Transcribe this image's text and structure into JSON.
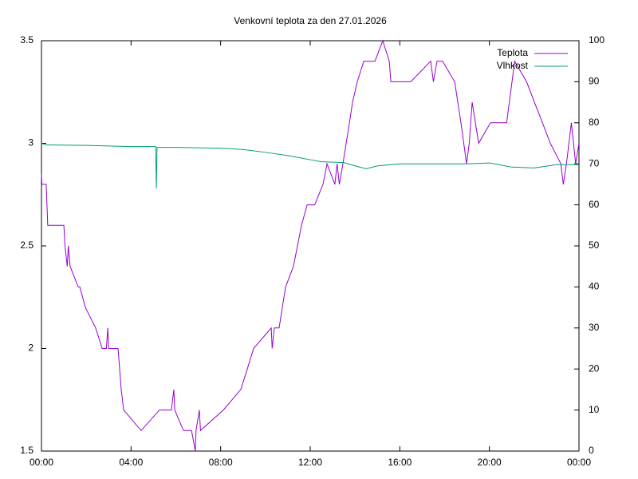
{
  "chart_data": {
    "type": "line",
    "title": "Venkovní teplota za den 27.01.2026",
    "xlim": [
      0,
      24
    ],
    "xticks": [
      {
        "value": 0,
        "label": "00:00"
      },
      {
        "value": 4,
        "label": "04:00"
      },
      {
        "value": 8,
        "label": "08:00"
      },
      {
        "value": 12,
        "label": "12:00"
      },
      {
        "value": 16,
        "label": "16:00"
      },
      {
        "value": 20,
        "label": "20:00"
      },
      {
        "value": 24,
        "label": "00:00"
      }
    ],
    "ylim": [
      1.5,
      3.5
    ],
    "yticks": [
      1.5,
      2,
      2.5,
      3,
      3.5
    ],
    "y2lim": [
      0,
      100
    ],
    "y2ticks": [
      0,
      10,
      20,
      30,
      40,
      50,
      60,
      70,
      80,
      90,
      100
    ],
    "grid": false,
    "legend": "top-right",
    "series": [
      {
        "name": "Teplota",
        "color": "#9400d3",
        "axis": "y",
        "x": [
          0,
          0.02,
          0.21,
          0.28,
          1.0,
          1.05,
          1.15,
          1.2,
          1.28,
          1.64,
          1.71,
          1.96,
          2.42,
          2.71,
          2.9,
          2.96,
          3.0,
          3.42,
          3.56,
          3.67,
          4.45,
          5.27,
          5.8,
          5.91,
          5.95,
          6.34,
          6.7,
          6.87,
          6.9,
          7.05,
          7.1,
          8.12,
          8.9,
          9.19,
          9.47,
          10.26,
          10.3,
          10.4,
          10.61,
          10.9,
          11.25,
          11.61,
          11.86,
          12.2,
          12.57,
          12.75,
          13.1,
          13.2,
          13.3,
          13.46,
          13.75,
          13.89,
          14.1,
          14.39,
          14.89,
          15.24,
          15.53,
          15.6,
          15.78,
          16.31,
          16.49,
          17.38,
          17.5,
          17.66,
          17.91,
          18.45,
          18.73,
          18.98,
          19.1,
          19.23,
          19.52,
          20.05,
          20.77,
          21.13,
          21.66,
          22.01,
          22.37,
          22.72,
          23.19,
          23.3,
          23.44,
          23.66,
          23.85,
          24.0
        ],
        "values": [
          2.85,
          2.8,
          2.8,
          2.6,
          2.6,
          2.5,
          2.4,
          2.5,
          2.4,
          2.3,
          2.3,
          2.2,
          2.1,
          2.0,
          2.0,
          2.1,
          2.0,
          2.0,
          1.8,
          1.7,
          1.6,
          1.7,
          1.7,
          1.8,
          1.7,
          1.6,
          1.6,
          1.5,
          1.6,
          1.7,
          1.6,
          1.7,
          1.8,
          1.9,
          2.0,
          2.1,
          2.0,
          2.1,
          2.1,
          2.3,
          2.4,
          2.6,
          2.7,
          2.7,
          2.8,
          2.9,
          2.8,
          2.9,
          2.8,
          2.9,
          3.1,
          3.2,
          3.3,
          3.4,
          3.4,
          3.5,
          3.4,
          3.3,
          3.3,
          3.3,
          3.3,
          3.4,
          3.3,
          3.4,
          3.4,
          3.3,
          3.1,
          2.9,
          3.0,
          3.2,
          3.0,
          3.1,
          3.1,
          3.4,
          3.3,
          3.2,
          3.1,
          3.0,
          2.9,
          2.8,
          2.9,
          3.1,
          2.9,
          3.0
        ]
      },
      {
        "name": "Vlhkost",
        "color": "#009e73",
        "axis": "y2",
        "x": [
          0,
          0.2,
          2,
          4,
          5.1,
          5.13,
          5.16,
          6,
          8,
          9,
          10,
          11,
          12,
          12.5,
          13,
          13.5,
          14,
          14.5,
          15,
          16,
          17,
          18,
          19,
          20,
          21,
          22,
          23,
          24
        ],
        "values": [
          75,
          74.6,
          74.5,
          74.2,
          74.2,
          64,
          74,
          74,
          73.8,
          73.5,
          72.8,
          72,
          71,
          70.5,
          70.4,
          70.3,
          69.5,
          68.8,
          69.5,
          70,
          70,
          70,
          70,
          70.2,
          69.2,
          69,
          69.8,
          69.8
        ]
      }
    ]
  }
}
